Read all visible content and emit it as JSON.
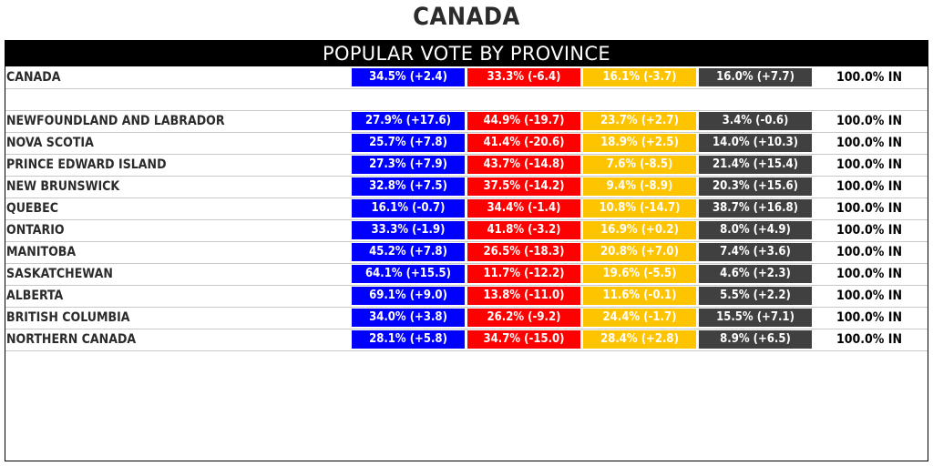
{
  "page_title": "CANADA",
  "panel_title": "POPULAR VOTE BY PROVINCE",
  "colors": {
    "party_1": "#0000ff",
    "party_2": "#ff0000",
    "party_3": "#ffc400",
    "party_4": "#404040"
  },
  "national": {
    "name": "CANADA",
    "values": [
      "34.5% (+2.4)",
      "33.3% (-6.4)",
      "16.1% (-3.7)",
      "16.0% (+7.7)"
    ],
    "reporting": "100.0% IN"
  },
  "provinces": [
    {
      "name": "NEWFOUNDLAND AND LABRADOR",
      "values": [
        "27.9% (+17.6)",
        "44.9% (-19.7)",
        "23.7% (+2.7)",
        "3.4% (-0.6)"
      ],
      "reporting": "100.0% IN"
    },
    {
      "name": "NOVA SCOTIA",
      "values": [
        "25.7% (+7.8)",
        "41.4% (-20.6)",
        "18.9% (+2.5)",
        "14.0% (+10.3)"
      ],
      "reporting": "100.0% IN"
    },
    {
      "name": "PRINCE EDWARD ISLAND",
      "values": [
        "27.3% (+7.9)",
        "43.7% (-14.8)",
        "7.6% (-8.5)",
        "21.4% (+15.4)"
      ],
      "reporting": "100.0% IN"
    },
    {
      "name": "NEW BRUNSWICK",
      "values": [
        "32.8% (+7.5)",
        "37.5% (-14.2)",
        "9.4% (-8.9)",
        "20.3% (+15.6)"
      ],
      "reporting": "100.0% IN"
    },
    {
      "name": "QUEBEC",
      "values": [
        "16.1% (-0.7)",
        "34.4% (-1.4)",
        "10.8% (-14.7)",
        "38.7% (+16.8)"
      ],
      "reporting": "100.0% IN"
    },
    {
      "name": "ONTARIO",
      "values": [
        "33.3% (-1.9)",
        "41.8% (-3.2)",
        "16.9% (+0.2)",
        "8.0% (+4.9)"
      ],
      "reporting": "100.0% IN"
    },
    {
      "name": "MANITOBA",
      "values": [
        "45.2% (+7.8)",
        "26.5% (-18.3)",
        "20.8% (+7.0)",
        "7.4% (+3.6)"
      ],
      "reporting": "100.0% IN"
    },
    {
      "name": "SASKATCHEWAN",
      "values": [
        "64.1% (+15.5)",
        "11.7% (-12.2)",
        "19.6% (-5.5)",
        "4.6% (+2.3)"
      ],
      "reporting": "100.0% IN"
    },
    {
      "name": "ALBERTA",
      "values": [
        "69.1% (+9.0)",
        "13.8% (-11.0)",
        "11.6% (-0.1)",
        "5.5% (+2.2)"
      ],
      "reporting": "100.0% IN"
    },
    {
      "name": "BRITISH COLUMBIA",
      "values": [
        "34.0% (+3.8)",
        "26.2% (-9.2)",
        "24.4% (-1.7)",
        "15.5% (+7.1)"
      ],
      "reporting": "100.0% IN"
    },
    {
      "name": "NORTHERN CANADA",
      "values": [
        "28.1% (+5.8)",
        "34.7% (-15.0)",
        "28.4% (+2.8)",
        "8.9% (+6.5)"
      ],
      "reporting": "100.0% IN"
    }
  ]
}
